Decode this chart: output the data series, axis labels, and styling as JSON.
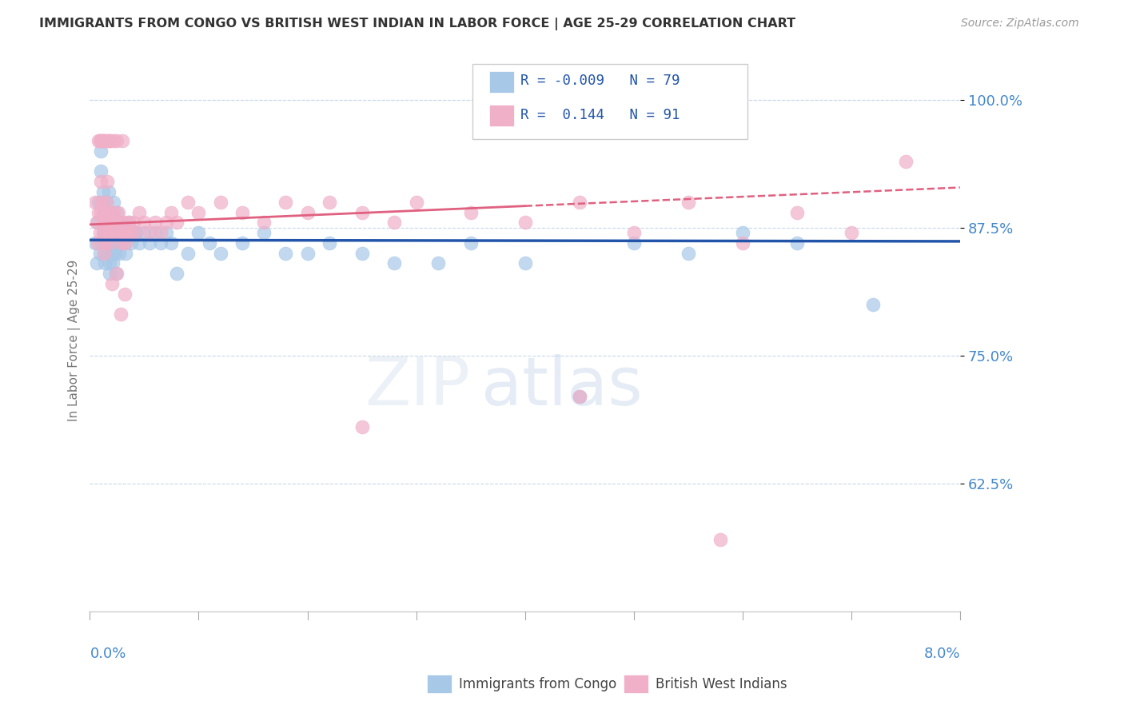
{
  "title": "IMMIGRANTS FROM CONGO VS BRITISH WEST INDIAN IN LABOR FORCE | AGE 25-29 CORRELATION CHART",
  "source": "Source: ZipAtlas.com",
  "ylabel": "In Labor Force | Age 25-29",
  "xlim": [
    0.0,
    8.0
  ],
  "ylim": [
    50.0,
    103.0
  ],
  "yticks": [
    62.5,
    75.0,
    87.5,
    100.0
  ],
  "ytick_labels": [
    "62.5%",
    "75.0%",
    "87.5%",
    "100.0%"
  ],
  "congo_R": -0.009,
  "congo_N": 79,
  "bwi_R": 0.144,
  "bwi_N": 91,
  "congo_color": "#a8c8e8",
  "bwi_color": "#f0b0c8",
  "congo_line_color": "#2255aa",
  "bwi_line_color": "#e06080",
  "watermark_zip": "ZIP",
  "watermark_atlas": "atlas",
  "legend_label_congo": "Immigrants from Congo",
  "legend_label_bwi": "British West Indians",
  "congo_x": [
    0.05,
    0.06,
    0.07,
    0.08,
    0.09,
    0.1,
    0.1,
    0.11,
    0.12,
    0.12,
    0.13,
    0.13,
    0.14,
    0.14,
    0.15,
    0.15,
    0.16,
    0.16,
    0.17,
    0.17,
    0.18,
    0.18,
    0.18,
    0.19,
    0.19,
    0.2,
    0.2,
    0.21,
    0.21,
    0.22,
    0.22,
    0.23,
    0.23,
    0.24,
    0.24,
    0.25,
    0.25,
    0.26,
    0.27,
    0.27,
    0.28,
    0.29,
    0.3,
    0.31,
    0.32,
    0.33,
    0.35,
    0.36,
    0.38,
    0.4,
    0.42,
    0.45,
    0.5,
    0.55,
    0.6,
    0.65,
    0.7,
    0.75,
    0.8,
    0.9,
    1.0,
    1.1,
    1.2,
    1.4,
    1.6,
    1.8,
    2.0,
    2.2,
    2.5,
    2.8,
    3.2,
    3.5,
    4.0,
    4.5,
    5.0,
    5.5,
    6.0,
    6.5,
    7.2
  ],
  "congo_y": [
    86,
    84,
    88,
    90,
    85,
    95,
    93,
    86,
    91,
    87,
    89,
    85,
    88,
    84,
    90,
    86,
    88,
    85,
    87,
    91,
    87,
    84,
    83,
    86,
    88,
    88,
    85,
    87,
    84,
    90,
    86,
    88,
    85,
    87,
    83,
    89,
    86,
    87,
    85,
    88,
    87,
    86,
    87,
    86,
    87,
    85,
    87,
    88,
    86,
    87,
    87,
    86,
    87,
    86,
    87,
    86,
    87,
    86,
    83,
    85,
    87,
    86,
    85,
    86,
    87,
    85,
    85,
    86,
    85,
    84,
    84,
    86,
    84,
    71,
    86,
    85,
    87,
    86,
    80
  ],
  "bwi_x": [
    0.05,
    0.06,
    0.07,
    0.08,
    0.09,
    0.1,
    0.1,
    0.11,
    0.12,
    0.12,
    0.13,
    0.13,
    0.14,
    0.14,
    0.15,
    0.15,
    0.16,
    0.16,
    0.17,
    0.17,
    0.18,
    0.18,
    0.19,
    0.2,
    0.21,
    0.22,
    0.22,
    0.23,
    0.24,
    0.25,
    0.26,
    0.27,
    0.28,
    0.29,
    0.3,
    0.31,
    0.32,
    0.33,
    0.35,
    0.36,
    0.38,
    0.4,
    0.42,
    0.45,
    0.5,
    0.55,
    0.6,
    0.65,
    0.7,
    0.75,
    0.8,
    0.9,
    1.0,
    1.2,
    1.4,
    1.6,
    1.8,
    2.0,
    2.2,
    2.5,
    2.8,
    3.0,
    3.5,
    4.0,
    4.5,
    5.0,
    5.5,
    6.0,
    6.5,
    7.0,
    7.5,
    0.2,
    0.25,
    0.28,
    0.32,
    0.18,
    0.22,
    0.25,
    0.3,
    0.18,
    0.16,
    0.14,
    0.13,
    0.12,
    0.11,
    0.1,
    0.09,
    0.08,
    2.5,
    4.5,
    5.8
  ],
  "bwi_y": [
    90,
    88,
    86,
    89,
    87,
    92,
    89,
    90,
    89,
    88,
    87,
    85,
    88,
    86,
    90,
    87,
    92,
    89,
    88,
    87,
    88,
    86,
    88,
    89,
    88,
    87,
    89,
    88,
    87,
    88,
    89,
    87,
    88,
    86,
    87,
    88,
    87,
    86,
    87,
    88,
    87,
    88,
    87,
    89,
    88,
    87,
    88,
    87,
    88,
    89,
    88,
    90,
    89,
    90,
    89,
    88,
    90,
    89,
    90,
    89,
    88,
    90,
    89,
    88,
    90,
    87,
    90,
    86,
    89,
    87,
    94,
    82,
    83,
    79,
    81,
    96,
    96,
    96,
    96,
    96,
    96,
    96,
    96,
    96,
    96,
    96,
    96,
    96,
    68,
    71,
    57
  ]
}
